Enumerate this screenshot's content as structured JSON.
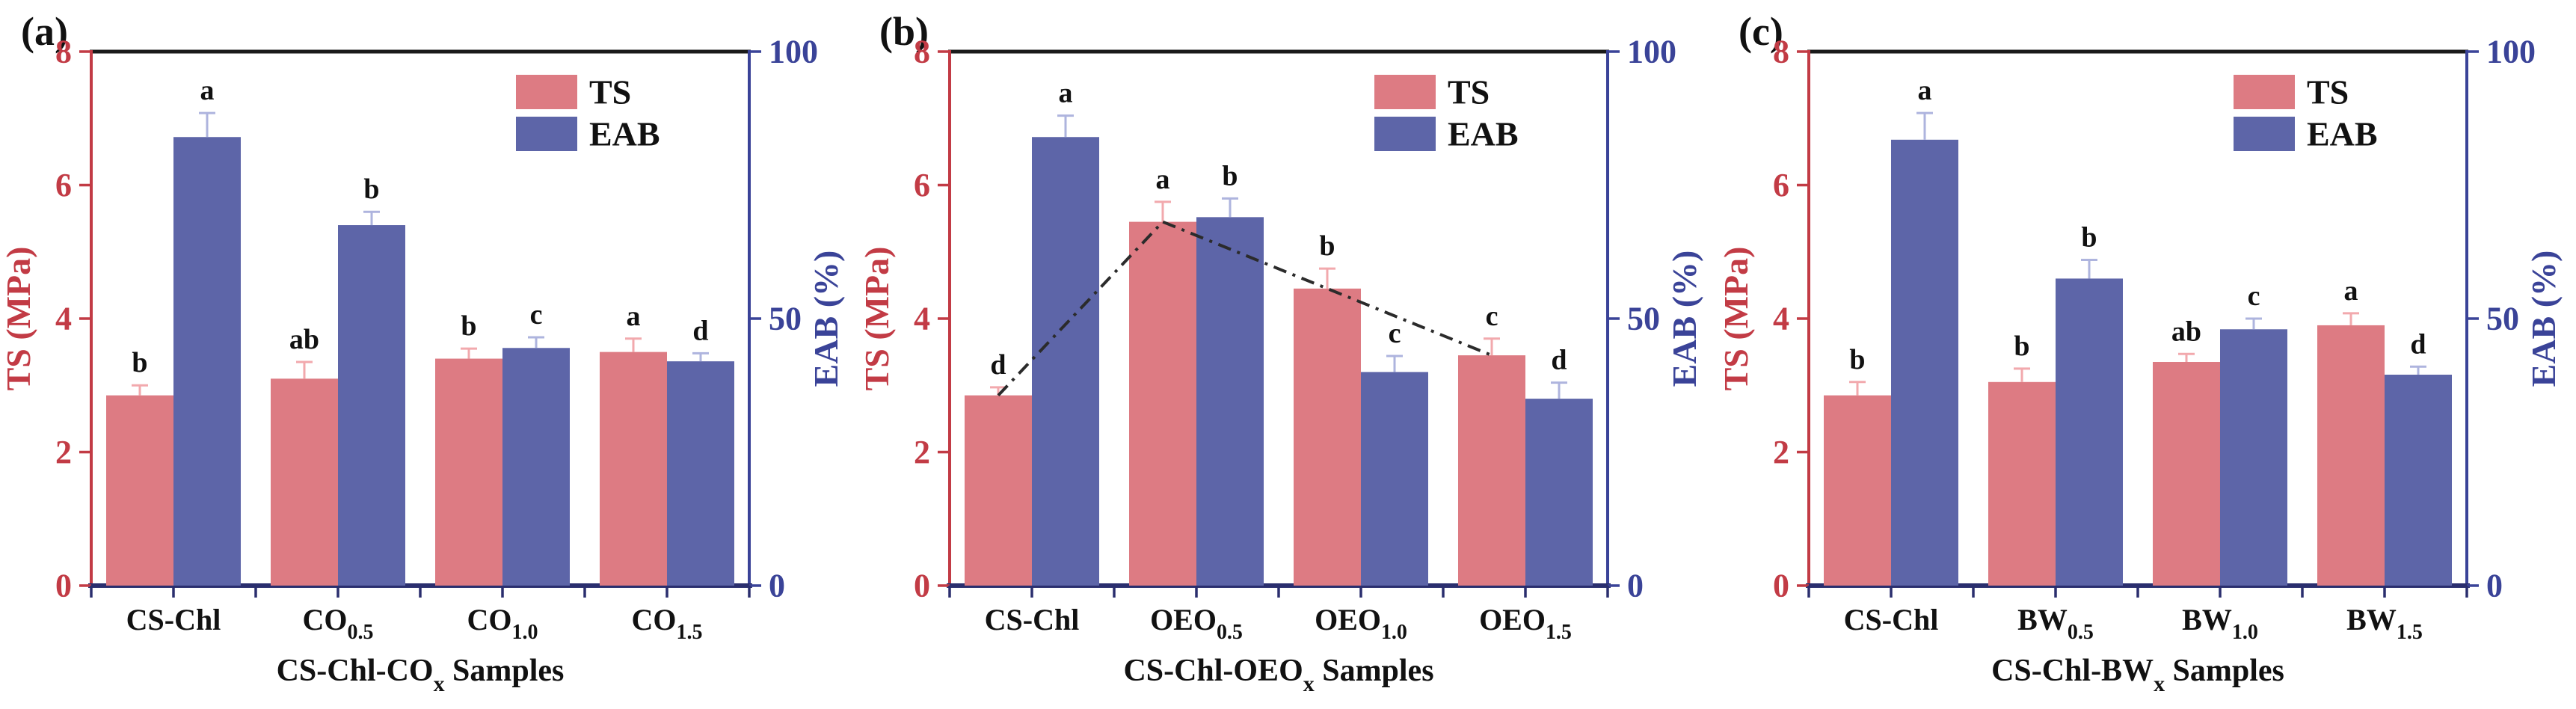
{
  "figure": {
    "description": "Three dual-axis bar charts comparing TS (MPa, left red axis) and EAB (%, right blue axis) of film samples",
    "panel_labels": [
      "(a)",
      "(b)",
      "(c)"
    ]
  },
  "legend": {
    "ts_label": "TS",
    "eab_label": "EAB"
  },
  "axes": {
    "left_label": "TS (MPa)",
    "right_label": "EAB (%)",
    "left_ticks": [
      0,
      2,
      4,
      6,
      8
    ],
    "right_ticks": [
      0,
      50,
      100
    ],
    "left_range": [
      0,
      8
    ],
    "right_range": [
      0,
      100
    ],
    "grid": false
  },
  "colors": {
    "ts_bar": "#dd7b83",
    "eab_bar": "#5d65a8",
    "ts_error": "#f2a9ad",
    "eab_error": "#aeb4de",
    "left_axis": "#c23b45",
    "right_axis": "#3a4398",
    "top_spine": "#1a1a1a",
    "bottom_spine": "#2a2e6e",
    "letter": "#111111",
    "trend_line": "#2b2b2b",
    "legend_text": "#111111"
  },
  "chart_data": [
    {
      "type": "bar",
      "panel_label": "(a)",
      "xlabel": {
        "prefix": "CS-Chl-CO",
        "sub": "x",
        "suffix": " Samples"
      },
      "categories": [
        {
          "base": "CS-Chl",
          "sub": ""
        },
        {
          "base": "CO",
          "sub": "0.5"
        },
        {
          "base": "CO",
          "sub": "1.0"
        },
        {
          "base": "CO",
          "sub": "1.5"
        }
      ],
      "legend_position": "upper-right-inside",
      "series": [
        {
          "name": "TS",
          "axis": "left",
          "unit": "MPa",
          "values": [
            2.85,
            3.1,
            3.4,
            3.5
          ],
          "errors": [
            0.15,
            0.25,
            0.15,
            0.2
          ],
          "letters": [
            "b",
            "ab",
            "b",
            "a"
          ]
        },
        {
          "name": "EAB",
          "axis": "right",
          "unit": "%",
          "values": [
            84,
            67.5,
            44.5,
            42
          ],
          "errors": [
            4.5,
            2.5,
            2,
            1.5
          ],
          "letters": [
            "a",
            "b",
            "c",
            "d"
          ]
        }
      ],
      "trend_line": null
    },
    {
      "type": "bar",
      "panel_label": "(b)",
      "xlabel": {
        "prefix": "CS-Chl-OEO",
        "sub": "x",
        "suffix": " Samples"
      },
      "categories": [
        {
          "base": "CS-Chl",
          "sub": ""
        },
        {
          "base": "OEO",
          "sub": "0.5"
        },
        {
          "base": "OEO",
          "sub": "1.0"
        },
        {
          "base": "OEO",
          "sub": "1.5"
        }
      ],
      "legend_position": "upper-right-inside",
      "series": [
        {
          "name": "TS",
          "axis": "left",
          "unit": "MPa",
          "values": [
            2.85,
            5.45,
            4.45,
            3.45
          ],
          "errors": [
            0.12,
            0.3,
            0.3,
            0.25
          ],
          "letters": [
            "d",
            "a",
            "b",
            "c"
          ]
        },
        {
          "name": "EAB",
          "axis": "right",
          "unit": "%",
          "values": [
            84,
            69,
            40,
            35
          ],
          "errors": [
            4,
            3.5,
            3,
            3
          ],
          "letters": [
            "a",
            "b",
            "c",
            "d"
          ]
        }
      ],
      "trend_line": {
        "on_series": "TS",
        "style": "dash-dot"
      }
    },
    {
      "type": "bar",
      "panel_label": "(c)",
      "xlabel": {
        "prefix": "CS-Chl-BW",
        "sub": "x",
        "suffix": " Samples"
      },
      "categories": [
        {
          "base": "CS-Chl",
          "sub": ""
        },
        {
          "base": "BW",
          "sub": "0.5"
        },
        {
          "base": "BW",
          "sub": "1.0"
        },
        {
          "base": "BW",
          "sub": "1.5"
        }
      ],
      "legend_position": "upper-right-inside",
      "series": [
        {
          "name": "TS",
          "axis": "left",
          "unit": "MPa",
          "values": [
            2.85,
            3.05,
            3.35,
            3.9
          ],
          "errors": [
            0.2,
            0.2,
            0.12,
            0.18
          ],
          "letters": [
            "b",
            "b",
            "ab",
            "a"
          ]
        },
        {
          "name": "EAB",
          "axis": "right",
          "unit": "%",
          "values": [
            83.5,
            57.5,
            48,
            39.5
          ],
          "errors": [
            5,
            3.5,
            2,
            1.5
          ],
          "letters": [
            "a",
            "b",
            "c",
            "d"
          ]
        }
      ],
      "trend_line": null
    }
  ]
}
